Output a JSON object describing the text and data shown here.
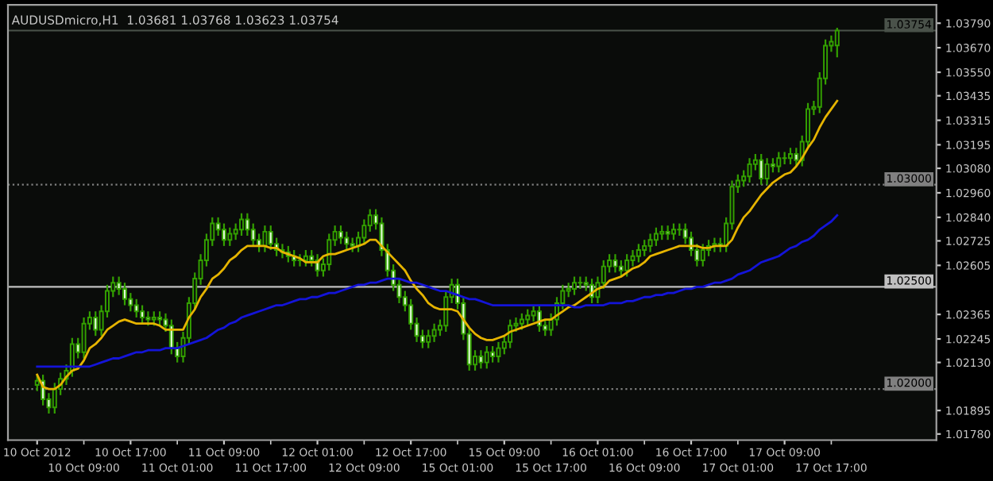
{
  "chart_data": {
    "type": "candlestick",
    "title": "AUDUSDmicro,H1  1.03681 1.03768 1.03623 1.03754",
    "color": "#33a000",
    "categories": [
      "10 Oct 2012",
      null,
      null,
      null,
      null,
      null,
      null,
      null,
      "10 Oct 09:00",
      null,
      null,
      null,
      null,
      null,
      null,
      null,
      "10 Oct 17:00",
      null,
      null,
      null,
      null,
      null,
      null,
      null,
      "11 Oct 01:00",
      null,
      null,
      null,
      null,
      null,
      null,
      null,
      "11 Oct 09:00",
      null,
      null,
      null,
      null,
      null,
      null,
      null,
      "11 Oct 17:00",
      null,
      null,
      null,
      null,
      null,
      null,
      null,
      "12 Oct 01:00",
      null,
      null,
      null,
      null,
      null,
      null,
      null,
      "12 Oct 09:00",
      null,
      null,
      null,
      null,
      null,
      null,
      null,
      "12 Oct 17:00",
      null,
      null,
      null,
      null,
      null,
      null,
      null,
      "15 Oct 01:00",
      null,
      null,
      null,
      null,
      null,
      null,
      null,
      "15 Oct 09:00",
      null,
      null,
      null,
      null,
      null,
      null,
      null,
      "15 Oct 17:00",
      null,
      null,
      null,
      null,
      null,
      null,
      null,
      "16 Oct 01:00",
      null,
      null,
      null,
      null,
      null,
      null,
      null,
      "16 Oct 09:00",
      null,
      null,
      null,
      null,
      null,
      null,
      null,
      "16 Oct 17:00",
      null,
      null,
      null,
      null,
      null,
      null,
      null,
      "17 Oct 01:00",
      null,
      null,
      null,
      null,
      null,
      null,
      null,
      "17 Oct 09:00",
      null,
      null,
      null,
      null,
      null,
      null,
      null,
      "17 Oct 17:00",
      null
    ],
    "ohlc": [
      [
        1.0202,
        1.0207,
        1.0199,
        1.0204
      ],
      [
        1.0204,
        1.0207,
        1.0192,
        1.0195
      ],
      [
        1.0195,
        1.0198,
        1.0188,
        1.0191
      ],
      [
        1.0191,
        1.0203,
        1.0188,
        1.02
      ],
      [
        1.02,
        1.0208,
        1.0197,
        1.0205
      ],
      [
        1.0205,
        1.0212,
        1.0202,
        1.0209
      ],
      [
        1.0209,
        1.0225,
        1.0206,
        1.0222
      ],
      [
        1.0222,
        1.0225,
        1.0215,
        1.0218
      ],
      [
        1.0218,
        1.0235,
        1.0215,
        1.0232
      ],
      [
        1.0232,
        1.0238,
        1.0229,
        1.0235
      ],
      [
        1.0235,
        1.0238,
        1.0226,
        1.0229
      ],
      [
        1.0229,
        1.0241,
        1.0226,
        1.0238
      ],
      [
        1.0238,
        1.0251,
        1.0235,
        1.0248
      ],
      [
        1.0248,
        1.0255,
        1.0245,
        1.0252
      ],
      [
        1.0252,
        1.0255,
        1.0246,
        1.0249
      ],
      [
        1.0249,
        1.0252,
        1.0241,
        1.0244
      ],
      [
        1.0244,
        1.0247,
        1.0238,
        1.0241
      ],
      [
        1.0241,
        1.0244,
        1.0235,
        1.0238
      ],
      [
        1.0238,
        1.0241,
        1.0232,
        1.0235
      ],
      [
        1.0235,
        1.0238,
        1.0231,
        1.0234
      ],
      [
        1.0234,
        1.0238,
        1.0231,
        1.0235
      ],
      [
        1.0235,
        1.0238,
        1.0231,
        1.0234
      ],
      [
        1.0234,
        1.0237,
        1.0228,
        1.0231
      ],
      [
        1.0231,
        1.0234,
        1.0217,
        1.022
      ],
      [
        1.022,
        1.0223,
        1.0213,
        1.0216
      ],
      [
        1.0216,
        1.0228,
        1.0213,
        1.0225
      ],
      [
        1.0225,
        1.0245,
        1.0222,
        1.0242
      ],
      [
        1.0242,
        1.0257,
        1.0239,
        1.0254
      ],
      [
        1.0254,
        1.0266,
        1.0251,
        1.0263
      ],
      [
        1.0263,
        1.0276,
        1.026,
        1.0273
      ],
      [
        1.0273,
        1.0284,
        1.027,
        1.0281
      ],
      [
        1.0281,
        1.0284,
        1.0275,
        1.0278
      ],
      [
        1.0278,
        1.0281,
        1.027,
        1.0273
      ],
      [
        1.0273,
        1.0279,
        1.027,
        1.0276
      ],
      [
        1.0276,
        1.0281,
        1.0273,
        1.0278
      ],
      [
        1.0278,
        1.0286,
        1.0275,
        1.0283
      ],
      [
        1.0283,
        1.0286,
        1.0275,
        1.0278
      ],
      [
        1.0278,
        1.0281,
        1.027,
        1.0273
      ],
      [
        1.0273,
        1.0276,
        1.0267,
        1.027
      ],
      [
        1.027,
        1.028,
        1.0267,
        1.0277
      ],
      [
        1.0277,
        1.028,
        1.0268,
        1.0271
      ],
      [
        1.0271,
        1.0274,
        1.0265,
        1.0268
      ],
      [
        1.0268,
        1.0271,
        1.0264,
        1.0267
      ],
      [
        1.0267,
        1.027,
        1.0262,
        1.0265
      ],
      [
        1.0265,
        1.0268,
        1.026,
        1.0263
      ],
      [
        1.0263,
        1.0266,
        1.026,
        1.0263
      ],
      [
        1.0263,
        1.0268,
        1.026,
        1.0265
      ],
      [
        1.0265,
        1.0268,
        1.026,
        1.0263
      ],
      [
        1.0263,
        1.0266,
        1.0255,
        1.0258
      ],
      [
        1.0258,
        1.0264,
        1.0255,
        1.0261
      ],
      [
        1.0261,
        1.0276,
        1.0258,
        1.0273
      ],
      [
        1.0273,
        1.028,
        1.027,
        1.0277
      ],
      [
        1.0277,
        1.028,
        1.0271,
        1.0274
      ],
      [
        1.0274,
        1.0277,
        1.0268,
        1.0271
      ],
      [
        1.0271,
        1.0274,
        1.0267,
        1.027
      ],
      [
        1.027,
        1.0277,
        1.0267,
        1.0274
      ],
      [
        1.0274,
        1.0283,
        1.0271,
        1.028
      ],
      [
        1.028,
        1.0288,
        1.0277,
        1.0285
      ],
      [
        1.0285,
        1.0288,
        1.0278,
        1.0281
      ],
      [
        1.0281,
        1.0284,
        1.0265,
        1.0268
      ],
      [
        1.0268,
        1.0271,
        1.0255,
        1.0258
      ],
      [
        1.0258,
        1.0261,
        1.0248,
        1.0251
      ],
      [
        1.0251,
        1.0254,
        1.0242,
        1.0245
      ],
      [
        1.0245,
        1.0248,
        1.0238,
        1.0241
      ],
      [
        1.0241,
        1.0244,
        1.0229,
        1.0232
      ],
      [
        1.0232,
        1.0235,
        1.0223,
        1.0226
      ],
      [
        1.0226,
        1.0229,
        1.022,
        1.0223
      ],
      [
        1.0223,
        1.0229,
        1.022,
        1.0226
      ],
      [
        1.0226,
        1.0232,
        1.0223,
        1.0229
      ],
      [
        1.0229,
        1.0234,
        1.0226,
        1.0231
      ],
      [
        1.0231,
        1.0248,
        1.0228,
        1.0245
      ],
      [
        1.0245,
        1.0254,
        1.0242,
        1.0251
      ],
      [
        1.0251,
        1.0254,
        1.0239,
        1.0242
      ],
      [
        1.0242,
        1.0245,
        1.0224,
        1.0227
      ],
      [
        1.0227,
        1.023,
        1.0209,
        1.0212
      ],
      [
        1.0212,
        1.0219,
        1.0209,
        1.0216
      ],
      [
        1.0216,
        1.0219,
        1.021,
        1.0213
      ],
      [
        1.0213,
        1.0221,
        1.021,
        1.0218
      ],
      [
        1.0218,
        1.0221,
        1.0213,
        1.0216
      ],
      [
        1.0216,
        1.0223,
        1.0213,
        1.022
      ],
      [
        1.022,
        1.0226,
        1.0217,
        1.0223
      ],
      [
        1.0223,
        1.0234,
        1.022,
        1.0231
      ],
      [
        1.0231,
        1.0235,
        1.0228,
        1.0232
      ],
      [
        1.0232,
        1.0237,
        1.0229,
        1.0234
      ],
      [
        1.0234,
        1.0239,
        1.0231,
        1.0236
      ],
      [
        1.0236,
        1.0241,
        1.0233,
        1.0238
      ],
      [
        1.0238,
        1.0241,
        1.0228,
        1.0231
      ],
      [
        1.0231,
        1.0234,
        1.0226,
        1.0229
      ],
      [
        1.0229,
        1.0237,
        1.0226,
        1.0234
      ],
      [
        1.0234,
        1.0245,
        1.0231,
        1.0242
      ],
      [
        1.0242,
        1.0251,
        1.0239,
        1.0248
      ],
      [
        1.0248,
        1.0252,
        1.0245,
        1.0249
      ],
      [
        1.0249,
        1.0255,
        1.0246,
        1.0252
      ],
      [
        1.0252,
        1.0255,
        1.0249,
        1.0252
      ],
      [
        1.0252,
        1.0255,
        1.0248,
        1.0251
      ],
      [
        1.0251,
        1.0254,
        1.0242,
        1.0245
      ],
      [
        1.0245,
        1.0255,
        1.0242,
        1.0252
      ],
      [
        1.0252,
        1.0263,
        1.0249,
        1.026
      ],
      [
        1.026,
        1.0266,
        1.0257,
        1.0263
      ],
      [
        1.0263,
        1.0266,
        1.0257,
        1.026
      ],
      [
        1.026,
        1.0263,
        1.0255,
        1.0258
      ],
      [
        1.0258,
        1.0266,
        1.0255,
        1.0263
      ],
      [
        1.0263,
        1.0268,
        1.026,
        1.0265
      ],
      [
        1.0265,
        1.0271,
        1.0262,
        1.0268
      ],
      [
        1.0268,
        1.0273,
        1.0265,
        1.027
      ],
      [
        1.027,
        1.0276,
        1.0267,
        1.0273
      ],
      [
        1.0273,
        1.0279,
        1.027,
        1.0276
      ],
      [
        1.0276,
        1.028,
        1.0273,
        1.0277
      ],
      [
        1.0277,
        1.028,
        1.0273,
        1.0276
      ],
      [
        1.0276,
        1.0281,
        1.0273,
        1.0278
      ],
      [
        1.0278,
        1.0281,
        1.0275,
        1.0278
      ],
      [
        1.0278,
        1.0281,
        1.0271,
        1.0274
      ],
      [
        1.0274,
        1.0277,
        1.0265,
        1.0268
      ],
      [
        1.0268,
        1.0271,
        1.026,
        1.0263
      ],
      [
        1.0263,
        1.0271,
        1.026,
        1.0268
      ],
      [
        1.0268,
        1.0273,
        1.0265,
        1.027
      ],
      [
        1.027,
        1.0274,
        1.0267,
        1.0271
      ],
      [
        1.0271,
        1.0274,
        1.0267,
        1.027
      ],
      [
        1.027,
        1.0284,
        1.0267,
        1.0281
      ],
      [
        1.0281,
        1.0302,
        1.0278,
        1.0299
      ],
      [
        1.0299,
        1.0305,
        1.0296,
        1.0302
      ],
      [
        1.0302,
        1.0307,
        1.0299,
        1.0304
      ],
      [
        1.0304,
        1.0313,
        1.0301,
        1.031
      ],
      [
        1.031,
        1.0315,
        1.0307,
        1.0312
      ],
      [
        1.0312,
        1.0315,
        1.03,
        1.0303
      ],
      [
        1.0303,
        1.0313,
        1.03,
        1.031
      ],
      [
        1.031,
        1.0313,
        1.0306,
        1.0309
      ],
      [
        1.0309,
        1.0316,
        1.0306,
        1.0313
      ],
      [
        1.0313,
        1.0316,
        1.031,
        1.0313
      ],
      [
        1.0313,
        1.0318,
        1.031,
        1.0315
      ],
      [
        1.0315,
        1.0318,
        1.0309,
        1.0312
      ],
      [
        1.0312,
        1.0324,
        1.0309,
        1.0321
      ],
      [
        1.0321,
        1.034,
        1.0318,
        1.0337
      ],
      [
        1.0337,
        1.0341,
        1.0334,
        1.0338
      ],
      [
        1.0338,
        1.0355,
        1.0335,
        1.0352
      ],
      [
        1.0352,
        1.0371,
        1.0349,
        1.0368
      ],
      [
        1.0368,
        1.0373,
        1.0365,
        1.037
      ],
      [
        1.03681,
        1.03768,
        1.03623,
        1.03754
      ]
    ],
    "series": [
      {
        "type": "line",
        "color": "#e6b400",
        "values": [
          1.0207,
          1.0201,
          1.02,
          1.02,
          1.0202,
          1.0206,
          1.0209,
          1.021,
          1.0214,
          1.022,
          1.0222,
          1.0225,
          1.0229,
          1.0231,
          1.0233,
          1.0234,
          1.0233,
          1.0232,
          1.0232,
          1.0232,
          1.0232,
          1.0231,
          1.0229,
          1.0229,
          1.0229,
          1.0229,
          1.0235,
          1.0239,
          1.0245,
          1.0249,
          1.0254,
          1.0256,
          1.0259,
          1.0263,
          1.0265,
          1.0268,
          1.027,
          1.027,
          1.027,
          1.027,
          1.0269,
          1.0269,
          1.0267,
          1.0266,
          1.0265,
          1.0264,
          1.0262,
          1.0262,
          1.0262,
          1.0265,
          1.0266,
          1.0266,
          1.0267,
          1.0268,
          1.0269,
          1.027,
          1.0271,
          1.0273,
          1.0273,
          1.027,
          1.0267,
          1.0264,
          1.0261,
          1.0258,
          1.0253,
          1.0249,
          1.0246,
          1.0242,
          1.024,
          1.0239,
          1.0239,
          1.0239,
          1.0238,
          1.0234,
          1.023,
          1.0227,
          1.0225,
          1.0224,
          1.0224,
          1.0225,
          1.0226,
          1.0228,
          1.0229,
          1.023,
          1.0231,
          1.0232,
          1.0233,
          1.0234,
          1.0234,
          1.0236,
          1.0238,
          1.024,
          1.0241,
          1.0243,
          1.0245,
          1.0247,
          1.0249,
          1.025,
          1.0253,
          1.0254,
          1.0255,
          1.0257,
          1.0259,
          1.026,
          1.0262,
          1.0265,
          1.0266,
          1.0267,
          1.0268,
          1.0269,
          1.027,
          1.027,
          1.027,
          1.027,
          1.0269,
          1.0269,
          1.027,
          1.027,
          1.027,
          1.0273,
          1.0279,
          1.0284,
          1.0287,
          1.0291,
          1.0295,
          1.0298,
          1.0301,
          1.0303,
          1.0305,
          1.0306,
          1.0309,
          1.0313,
          1.0318,
          1.0322,
          1.0328,
          1.0333,
          1.0337,
          1.0341
        ]
      },
      {
        "type": "line",
        "color": "#1414d8",
        "values": [
          1.0211,
          1.0211,
          1.0211,
          1.0211,
          1.0211,
          1.0211,
          1.0211,
          1.0211,
          1.0211,
          1.0211,
          1.0212,
          1.0213,
          1.0214,
          1.0215,
          1.0215,
          1.0216,
          1.0217,
          1.0218,
          1.0218,
          1.0219,
          1.0219,
          1.0219,
          1.022,
          1.022,
          1.022,
          1.0221,
          1.0222,
          1.0223,
          1.0224,
          1.0225,
          1.0227,
          1.0229,
          1.023,
          1.0232,
          1.0233,
          1.0235,
          1.0236,
          1.0237,
          1.0238,
          1.0239,
          1.024,
          1.0241,
          1.0241,
          1.0242,
          1.0243,
          1.0244,
          1.0244,
          1.0245,
          1.0245,
          1.0246,
          1.0247,
          1.0247,
          1.0248,
          1.0249,
          1.025,
          1.0251,
          1.0251,
          1.0252,
          1.0252,
          1.0253,
          1.0254,
          1.0254,
          1.0254,
          1.0253,
          1.0252,
          1.0252,
          1.0251,
          1.025,
          1.0249,
          1.0248,
          1.0248,
          1.0247,
          1.0246,
          1.0245,
          1.0244,
          1.0244,
          1.0243,
          1.0242,
          1.0241,
          1.0241,
          1.0241,
          1.0241,
          1.0241,
          1.0241,
          1.0241,
          1.0241,
          1.0241,
          1.0241,
          1.0241,
          1.0241,
          1.0241,
          1.0241,
          1.024,
          1.024,
          1.0241,
          1.0241,
          1.0241,
          1.0241,
          1.0242,
          1.0242,
          1.0242,
          1.0243,
          1.0243,
          1.0244,
          1.0245,
          1.0245,
          1.0246,
          1.0246,
          1.0247,
          1.0247,
          1.0248,
          1.0249,
          1.0249,
          1.025,
          1.025,
          1.0251,
          1.0252,
          1.0252,
          1.0253,
          1.0254,
          1.0256,
          1.0257,
          1.0258,
          1.026,
          1.0262,
          1.0263,
          1.0264,
          1.0265,
          1.0267,
          1.0269,
          1.027,
          1.0272,
          1.0273,
          1.0275,
          1.0278,
          1.028,
          1.0282,
          1.0285
        ]
      }
    ],
    "ylim": [
      1.0175,
      1.0388
    ],
    "yticks": [
      {
        "value": 1.0379,
        "label": "1.03790"
      },
      {
        "value": 1.0367,
        "label": "1.03670"
      },
      {
        "value": 1.0355,
        "label": "1.03550"
      },
      {
        "value": 1.03435,
        "label": "1.03435"
      },
      {
        "value": 1.03315,
        "label": "1.03315"
      },
      {
        "value": 1.03195,
        "label": "1.03195"
      },
      {
        "value": 1.0308,
        "label": "1.03080"
      },
      {
        "value": 1.0296,
        "label": "1.02960"
      },
      {
        "value": 1.0284,
        "label": "1.02840"
      },
      {
        "value": 1.02725,
        "label": "1.02725"
      },
      {
        "value": 1.02605,
        "label": "1.02605"
      },
      {
        "value": 1.02365,
        "label": "1.02365"
      },
      {
        "value": 1.02245,
        "label": "1.02245"
      },
      {
        "value": 1.0213,
        "label": "1.02130"
      },
      {
        "value": 1.01895,
        "label": "1.01895"
      },
      {
        "value": 1.0178,
        "label": "1.01780"
      }
    ],
    "ref_lines": [
      {
        "axis": "y",
        "value": 1.03754,
        "label": "1.03754",
        "color": "#4a524a",
        "line_style": "solid"
      },
      {
        "axis": "y",
        "value": 1.03,
        "label": "1.03000",
        "color": "#808080",
        "line_style": "dotted"
      },
      {
        "axis": "y",
        "value": 1.025,
        "label": "1.02500",
        "color": "#c0c0c0",
        "line_style": "solid"
      },
      {
        "axis": "y",
        "value": 1.02,
        "label": "1.02000",
        "color": "#808080",
        "line_style": "dotted"
      }
    ]
  }
}
